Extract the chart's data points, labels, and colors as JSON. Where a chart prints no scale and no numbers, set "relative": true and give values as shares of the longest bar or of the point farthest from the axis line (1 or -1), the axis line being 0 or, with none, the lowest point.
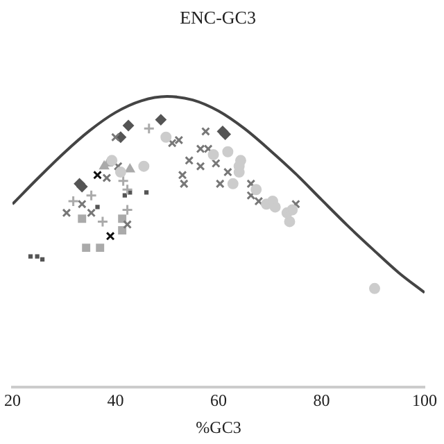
{
  "chart_data": {
    "type": "scatter",
    "title": "ENC-GC3",
    "xlabel": "%GC3",
    "relative": true,
    "xlim": [
      20,
      100
    ],
    "xticks": [
      20,
      40,
      60,
      80,
      100
    ],
    "tick_labels": "x",
    "grid": false,
    "legend": false,
    "series": [
      {
        "type": "line",
        "color": "#444444",
        "marker": "none",
        "x": [
          20,
          25,
          30,
          35,
          40,
          45,
          50,
          55,
          60,
          65,
          70,
          75,
          80,
          85,
          90,
          95,
          100
        ],
        "values": [
          0.63,
          0.72,
          0.806,
          0.883,
          0.945,
          0.985,
          1,
          0.988,
          0.95,
          0.89,
          0.815,
          0.734,
          0.645,
          0.557,
          0.474,
          0.394,
          0.326
        ]
      },
      {
        "color": "#cccccc",
        "marker": "circle",
        "x": [
          49.8,
          61.8,
          59,
          45.5,
          64.3,
          64,
          39.3,
          41,
          64,
          62.8,
          67.3,
          69.3,
          70.5,
          71,
          73.3,
          74.3,
          73.8,
          90.3
        ],
        "values": [
          0.86,
          0.81,
          0.8,
          0.76,
          0.78,
          0.76,
          0.78,
          0.74,
          0.74,
          0.7,
          0.68,
          0.63,
          0.64,
          0.62,
          0.6,
          0.61,
          0.57,
          0.34
        ]
      },
      {
        "color": "#777777",
        "marker": "cross",
        "x": [
          40,
          57.5,
          51,
          52.3,
          56.5,
          58,
          54.3,
          56.5,
          59.5,
          61.8,
          40.5,
          53,
          38.3,
          53.3,
          60.3,
          30.5,
          33.5,
          35.3,
          42.3,
          66.3,
          66.3,
          67.8,
          75
        ],
        "values": [
          0.86,
          0.88,
          0.84,
          0.85,
          0.82,
          0.82,
          0.78,
          0.76,
          0.77,
          0.74,
          0.76,
          0.73,
          0.72,
          0.7,
          0.7,
          0.6,
          0.63,
          0.6,
          0.56,
          0.7,
          0.66,
          0.64,
          0.63
        ]
      },
      {
        "color": "#555555",
        "marker": "diamond",
        "x": [
          48.8,
          42.5,
          41,
          60.8,
          61.3,
          33,
          33.5
        ],
        "values": [
          0.92,
          0.9,
          0.86,
          0.88,
          0.87,
          0.7,
          0.69
        ]
      },
      {
        "color": "#aaaaaa",
        "marker": "plus",
        "x": [
          46.5,
          41.5,
          35.3,
          31.8,
          37.5,
          42.3,
          42.3
        ],
        "values": [
          0.89,
          0.71,
          0.66,
          0.64,
          0.57,
          0.61,
          0.68
        ]
      },
      {
        "color": "#aaaaaa",
        "marker": "triangle",
        "x": [
          38.5,
          37.8,
          42.8
        ],
        "values": [
          0.77,
          0.76,
          0.75
        ]
      },
      {
        "color": "#aaaaaa",
        "marker": "square",
        "x": [
          33.5,
          41.3,
          41.3,
          34.3,
          37
        ],
        "values": [
          0.58,
          0.58,
          0.54,
          0.48,
          0.48
        ]
      },
      {
        "color": "#555555",
        "marker": "square",
        "x": [
          46,
          36.5,
          23.5,
          24.8,
          25.8,
          41.8,
          42.8
        ],
        "values": [
          0.67,
          0.62,
          0.45,
          0.45,
          0.44,
          0.66,
          0.67
        ]
      },
      {
        "color": "#111111",
        "marker": "cross",
        "x": [
          36.5,
          39
        ],
        "values": [
          0.73,
          0.52
        ]
      }
    ]
  }
}
